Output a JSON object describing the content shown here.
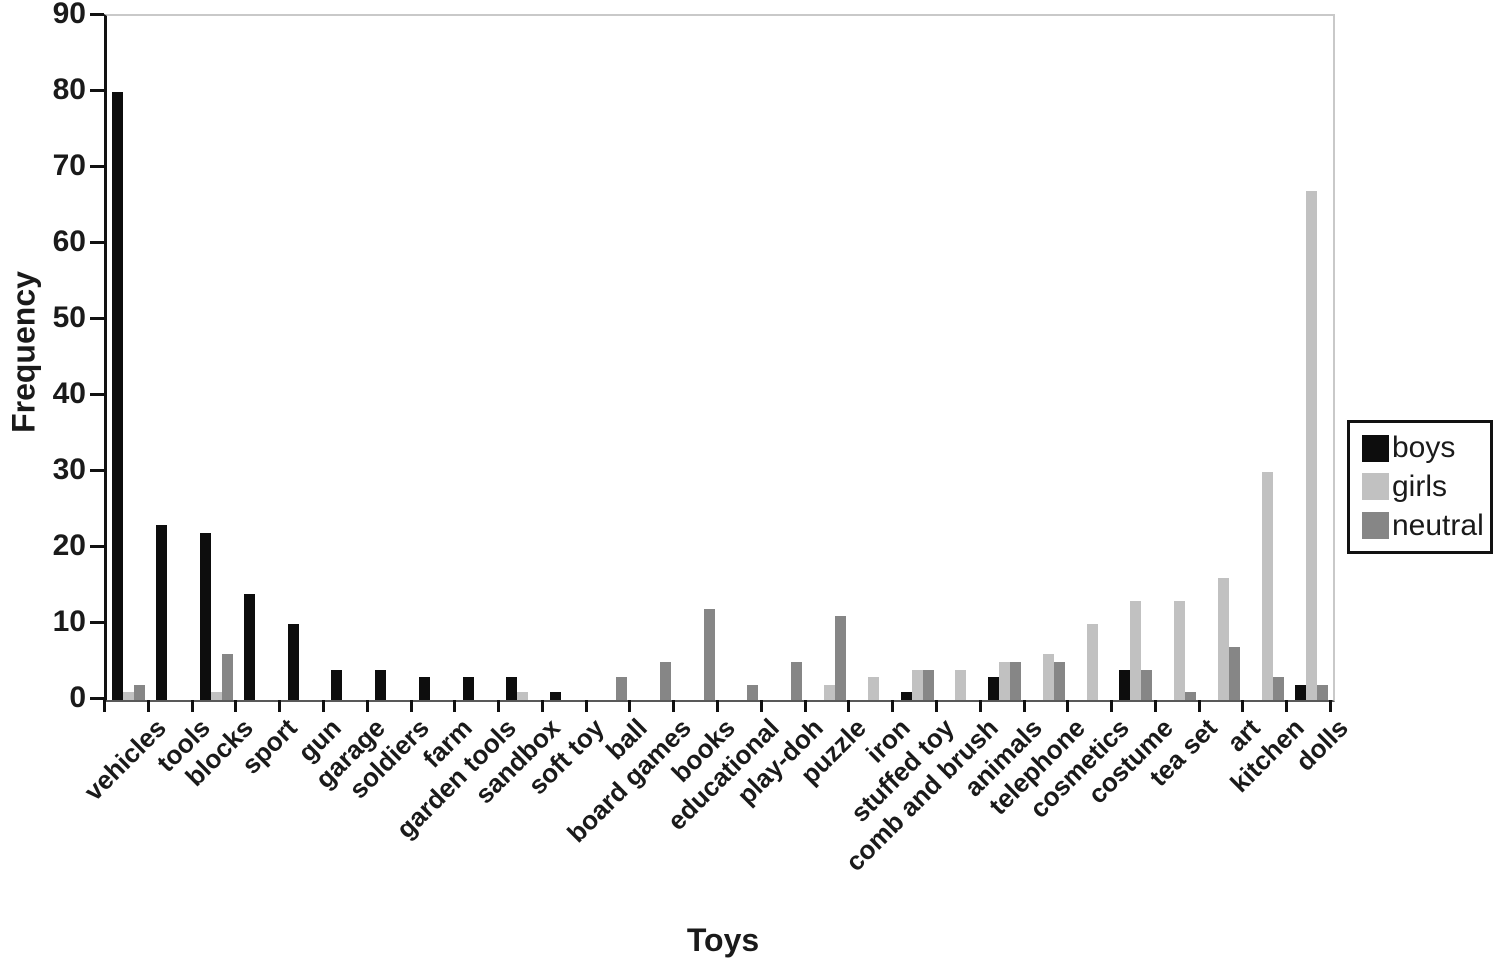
{
  "chart_data": {
    "type": "bar",
    "title": "",
    "xlabel": "Toys",
    "ylabel": "Frequency",
    "ylim": [
      0,
      90
    ],
    "yticks": [
      0,
      10,
      20,
      30,
      40,
      50,
      60,
      70,
      80,
      90
    ],
    "grid": false,
    "legend_position": "right",
    "categories": [
      "vehicles",
      "tools",
      "blocks",
      "sport",
      "gun",
      "garage",
      "soldiers",
      "farm",
      "garden tools",
      "sandbox",
      "soft toy",
      "ball",
      "board games",
      "books",
      "educational",
      "play-doh",
      "puzzle",
      "iron",
      "stuffed toy",
      "comb and brush",
      "animals",
      "telephone",
      "cosmetics",
      "costume",
      "tea set",
      "art",
      "kitchen",
      "dolls"
    ],
    "series": [
      {
        "name": "boys",
        "color": "#0d0d0d",
        "values": [
          80,
          23,
          22,
          14,
          10,
          4,
          4,
          3,
          3,
          3,
          1,
          0,
          0,
          0,
          0,
          0,
          0,
          0,
          1,
          0,
          3,
          0,
          0,
          4,
          0,
          0,
          0,
          2
        ]
      },
      {
        "name": "girls",
        "color": "#c1c1c1",
        "values": [
          1,
          0,
          1,
          0,
          0,
          0,
          0,
          0,
          0,
          1,
          0,
          0,
          0,
          0,
          0,
          0,
          2,
          3,
          4,
          4,
          5,
          6,
          10,
          13,
          13,
          16,
          30,
          67
        ]
      },
      {
        "name": "neutral",
        "color": "#868686",
        "values": [
          2,
          0,
          6,
          0,
          0,
          0,
          0,
          0,
          0,
          0,
          0,
          3,
          5,
          12,
          2,
          5,
          11,
          0,
          4,
          0,
          5,
          5,
          0,
          4,
          1,
          7,
          3,
          2
        ]
      }
    ]
  }
}
